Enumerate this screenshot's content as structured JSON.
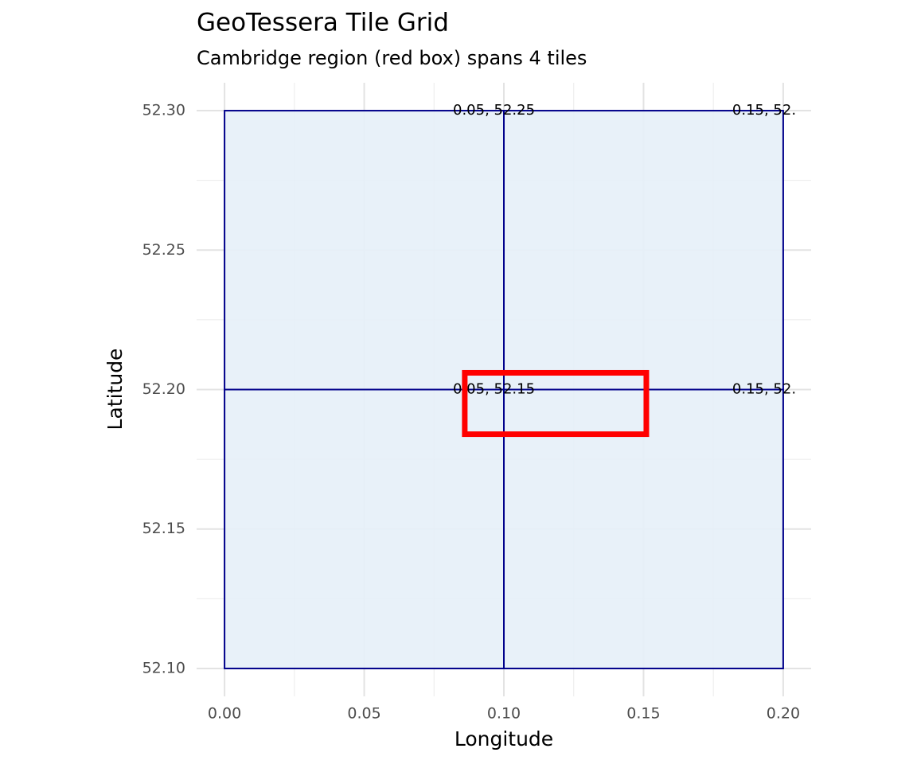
{
  "chart_data": {
    "type": "tiles",
    "title": "GeoTessera Tile Grid",
    "subtitle": "Cambridge region (red box) spans 4 tiles",
    "x_label": "Longitude",
    "y_label": "Latitude",
    "xlim": [
      -0.01,
      0.21
    ],
    "ylim": [
      52.09,
      52.31
    ],
    "xticks": [
      {
        "value": 0,
        "label": "0.00"
      },
      0.05,
      {
        "value": 0.1,
        "label": "0.10"
      },
      0.15,
      {
        "value": 0.2,
        "label": "0.20"
      }
    ],
    "yticks": [
      {
        "value": 52.1,
        "label": "52.10"
      },
      52.15,
      {
        "value": 52.2,
        "label": "52.20"
      },
      52.25,
      {
        "value": 52.3,
        "label": "52.30"
      }
    ],
    "x_minor_grid": [
      0.025,
      0.075,
      0.125,
      0.175
    ],
    "y_minor_grid": [
      52.125,
      52.175,
      52.225,
      52.275
    ],
    "grid": true,
    "tile_fill": "#e6f0f8",
    "tile_color": "#00008b",
    "tiles": [
      {
        "xmin": 0,
        "xmax": 0.1,
        "ymin": 52.1,
        "ymax": 52.2
      },
      {
        "xmin": 0.1,
        "xmax": 0.2,
        "ymin": 52.1,
        "ymax": 52.2
      },
      {
        "xmin": 0,
        "xmax": 0.1,
        "ymin": 52.2,
        "ymax": 52.3
      },
      {
        "xmin": 0.1,
        "xmax": 0.2,
        "ymin": 52.2,
        "ymax": 52.3
      }
    ],
    "labels": [
      {
        "x": 0.1,
        "y": 52.3,
        "text": "0.05, 52.25"
      },
      {
        "x": 0.2,
        "y": 52.3,
        "text": "0.15, 52."
      },
      {
        "x": 0.1,
        "y": 52.2,
        "text": "0.05, 52.15"
      },
      {
        "x": 0.2,
        "y": 52.2,
        "text": "0.15, 52."
      }
    ],
    "region": {
      "xmin": 0.086,
      "xmax": 0.151,
      "ymin": 52.184,
      "ymax": 52.206,
      "color": "#ff0000"
    }
  }
}
